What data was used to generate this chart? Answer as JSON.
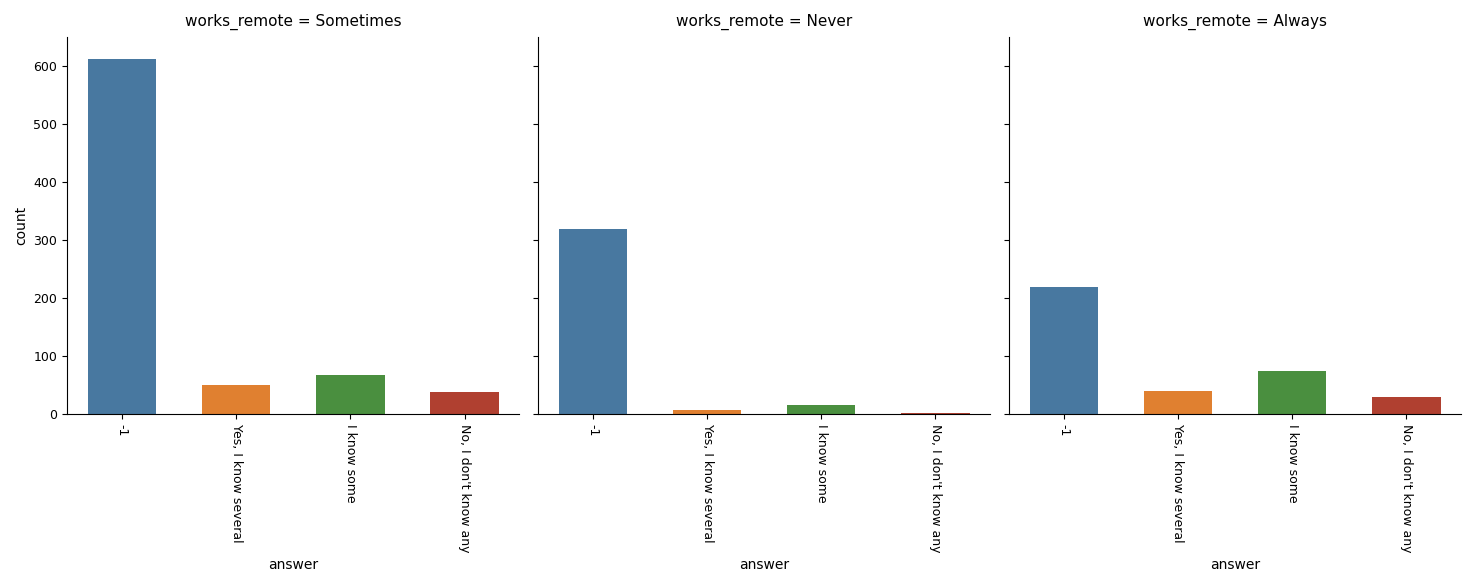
{
  "panels": [
    {
      "title": "works_remote = Sometimes",
      "categories": [
        "-1",
        "Yes, I know several",
        "I know some",
        "No, I don't know any"
      ],
      "values": [
        612,
        50,
        68,
        38
      ],
      "colors": [
        "#4878a0",
        "#e08030",
        "#4a8f3f",
        "#b04030"
      ]
    },
    {
      "title": "works_remote = Never",
      "categories": [
        "-1",
        "Yes, I know several",
        "I know some",
        "No, I don't know any"
      ],
      "values": [
        320,
        8,
        16,
        3
      ],
      "colors": [
        "#4878a0",
        "#e08030",
        "#4a8f3f",
        "#b04030"
      ]
    },
    {
      "title": "works_remote = Always",
      "categories": [
        "-1",
        "Yes, I know several",
        "I know some",
        "No, I don't know any"
      ],
      "values": [
        220,
        40,
        75,
        30
      ],
      "colors": [
        "#4878a0",
        "#e08030",
        "#4a8f3f",
        "#b04030"
      ]
    }
  ],
  "ylabel": "count",
  "xlabel": "answer",
  "ylim": [
    0,
    650
  ],
  "yticks": [
    0,
    100,
    200,
    300,
    400,
    500,
    600
  ],
  "fig_width": 14.75,
  "fig_height": 5.86,
  "background_color": "#ffffff"
}
